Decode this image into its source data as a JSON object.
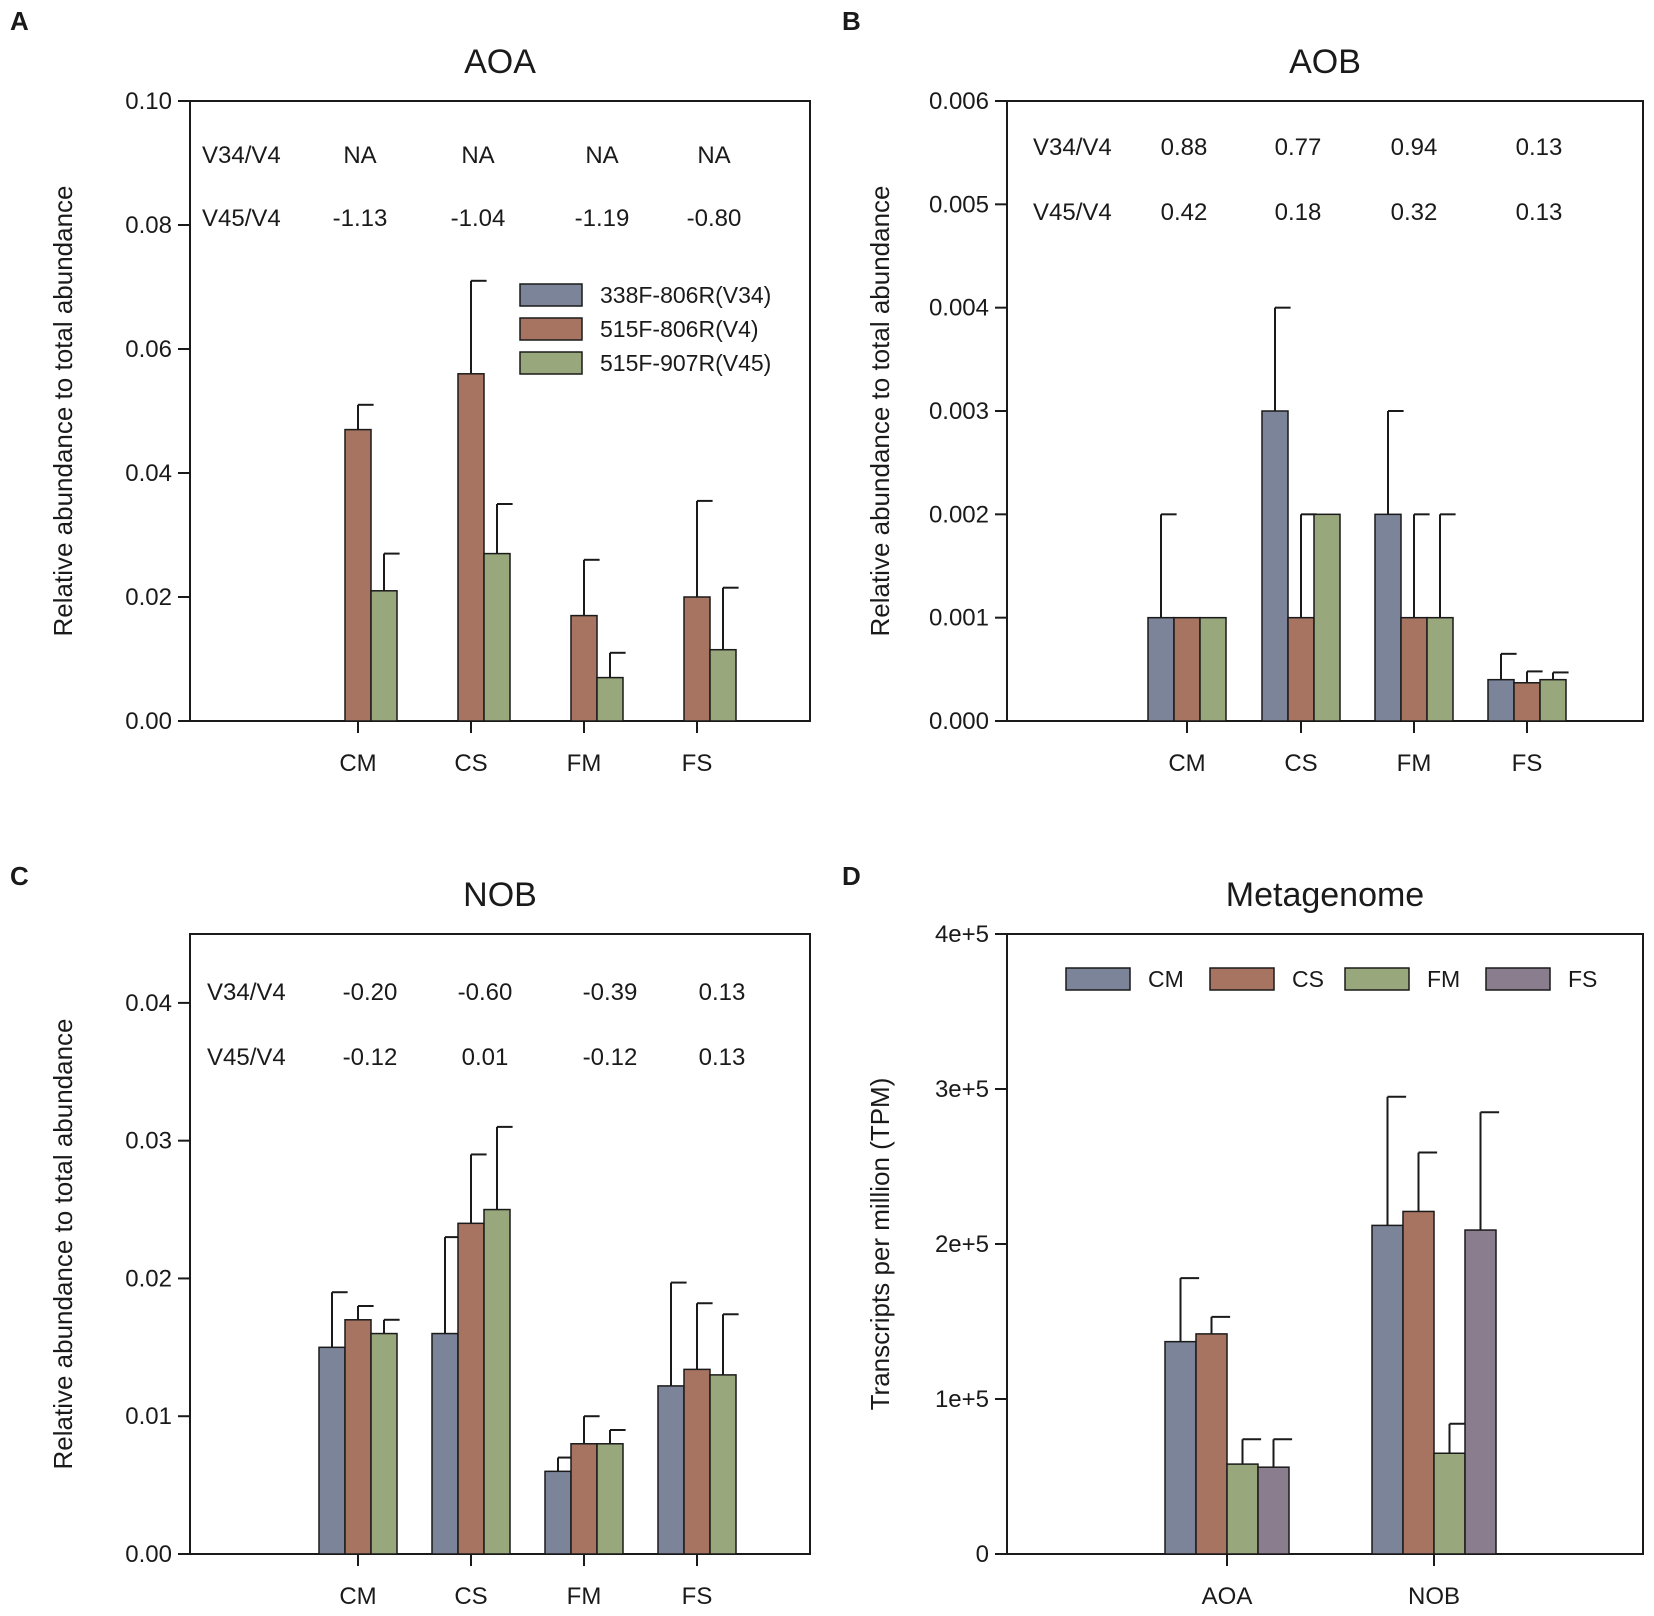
{
  "figure": {
    "colors": {
      "V34": "#7b8499",
      "V4": "#a87462",
      "V45": "#98a77c",
      "FS": "#8a7d8e",
      "axis": "#1a1a1a"
    }
  },
  "chart_data": [
    {
      "type": "bar",
      "panel": "A",
      "title": "AOA",
      "ylabel": "Relative abundance to total abundance",
      "xlabel": "",
      "ylim": [
        0,
        0.1
      ],
      "yticks": [
        "0.00",
        "0.02",
        "0.04",
        "0.06",
        "0.08",
        "0.10"
      ],
      "ytick_values": [
        0,
        0.02,
        0.04,
        0.06,
        0.08,
        0.1
      ],
      "categories": [
        "CM",
        "CS",
        "FM",
        "FS"
      ],
      "series": [
        {
          "name": "338F-806R(V34)",
          "key": "V34",
          "values": [
            null,
            null,
            null,
            null
          ],
          "errors": [
            null,
            null,
            null,
            null
          ]
        },
        {
          "name": "515F-806R(V4)",
          "key": "V4",
          "values": [
            0.047,
            0.056,
            0.017,
            0.02
          ],
          "errors": [
            0.004,
            0.015,
            0.009,
            0.0155
          ]
        },
        {
          "name": "515F-907R(V45)",
          "key": "V45",
          "values": [
            0.021,
            0.027,
            0.007,
            0.0115
          ],
          "errors": [
            0.006,
            0.008,
            0.004,
            0.01
          ]
        }
      ],
      "annotations": {
        "rows": [
          {
            "label": "V34/V4",
            "values": [
              "NA",
              "NA",
              "NA",
              "NA"
            ]
          },
          {
            "label": "V45/V4",
            "values": [
              "-1.13",
              "-1.04",
              "-1.19",
              "-0.80"
            ]
          }
        ]
      },
      "legend": {
        "placement": "top-right",
        "entries": [
          "338F-806R(V34)",
          "515F-806R(V4)",
          "515F-907R(V45)"
        ]
      }
    },
    {
      "type": "bar",
      "panel": "B",
      "title": "AOB",
      "ylabel": "Relative abundance to total abundance",
      "xlabel": "",
      "ylim": [
        0,
        0.006
      ],
      "yticks": [
        "0.000",
        "0.001",
        "0.002",
        "0.003",
        "0.004",
        "0.005",
        "0.006"
      ],
      "ytick_values": [
        0,
        0.001,
        0.002,
        0.003,
        0.004,
        0.005,
        0.006
      ],
      "categories": [
        "CM",
        "CS",
        "FM",
        "FS"
      ],
      "series": [
        {
          "name": "338F-806R(V34)",
          "key": "V34",
          "values": [
            0.001,
            0.003,
            0.002,
            0.0004
          ],
          "errors": [
            0.001,
            0.001,
            0.001,
            0.00025
          ]
        },
        {
          "name": "515F-806R(V4)",
          "key": "V4",
          "values": [
            0.001,
            0.001,
            0.001,
            0.00037
          ],
          "errors": [
            null,
            0.001,
            0.001,
            0.00011
          ]
        },
        {
          "name": "515F-907R(V45)",
          "key": "V45",
          "values": [
            0.001,
            0.002,
            0.001,
            0.0004
          ],
          "errors": [
            null,
            null,
            0.001,
            7e-05
          ]
        }
      ],
      "annotations": {
        "rows": [
          {
            "label": "V34/V4",
            "values": [
              "0.88",
              "0.77",
              "0.94",
              "0.13"
            ]
          },
          {
            "label": "V45/V4",
            "values": [
              "0.42",
              "0.18",
              "0.32",
              "0.13"
            ]
          }
        ]
      }
    },
    {
      "type": "bar",
      "panel": "C",
      "title": "NOB",
      "ylabel": "Relative abundance to total abundance",
      "xlabel": "",
      "ylim": [
        0,
        0.045
      ],
      "yticks": [
        "0.00",
        "0.01",
        "0.02",
        "0.03",
        "0.04"
      ],
      "ytick_values": [
        0,
        0.01,
        0.02,
        0.03,
        0.04
      ],
      "categories": [
        "CM",
        "CS",
        "FM",
        "FS"
      ],
      "series": [
        {
          "name": "338F-806R(V34)",
          "key": "V34",
          "values": [
            0.015,
            0.016,
            0.006,
            0.0122
          ],
          "errors": [
            0.004,
            0.007,
            0.001,
            0.0075
          ]
        },
        {
          "name": "515F-806R(V4)",
          "key": "V4",
          "values": [
            0.017,
            0.024,
            0.008,
            0.0134
          ],
          "errors": [
            0.001,
            0.005,
            0.002,
            0.0048
          ]
        },
        {
          "name": "515F-907R(V45)",
          "key": "V45",
          "values": [
            0.016,
            0.025,
            0.008,
            0.013
          ],
          "errors": [
            0.001,
            0.006,
            0.001,
            0.0044
          ]
        }
      ],
      "annotations": {
        "rows": [
          {
            "label": "V34/V4",
            "values": [
              "-0.20",
              "-0.60",
              "-0.39",
              "0.13"
            ]
          },
          {
            "label": "V45/V4",
            "values": [
              "-0.12",
              "0.01",
              "-0.12",
              "0.13"
            ]
          }
        ]
      }
    },
    {
      "type": "bar",
      "panel": "D",
      "title": "Metagenome",
      "ylabel": "Transcripts per million (TPM)",
      "xlabel": "",
      "ylim": [
        0,
        400000
      ],
      "yticks": [
        "0",
        "1e+5",
        "2e+5",
        "3e+5",
        "4e+5"
      ],
      "ytick_values": [
        0,
        100000,
        200000,
        300000,
        400000
      ],
      "categories": [
        "AOA",
        "NOB"
      ],
      "series": [
        {
          "name": "CM",
          "key": "V34",
          "values": [
            137000,
            212000
          ],
          "errors": [
            41000,
            83000
          ]
        },
        {
          "name": "CS",
          "key": "V4",
          "values": [
            142000,
            221000
          ],
          "errors": [
            11000,
            38000
          ]
        },
        {
          "name": "FM",
          "key": "V45",
          "values": [
            58000,
            65000
          ],
          "errors": [
            16000,
            19000
          ]
        },
        {
          "name": "FS",
          "key": "FS",
          "values": [
            56000,
            209000
          ],
          "errors": [
            18000,
            76000
          ]
        }
      ],
      "legend": {
        "placement": "top",
        "entries": [
          "CM",
          "CS",
          "FM",
          "FS"
        ]
      }
    }
  ]
}
